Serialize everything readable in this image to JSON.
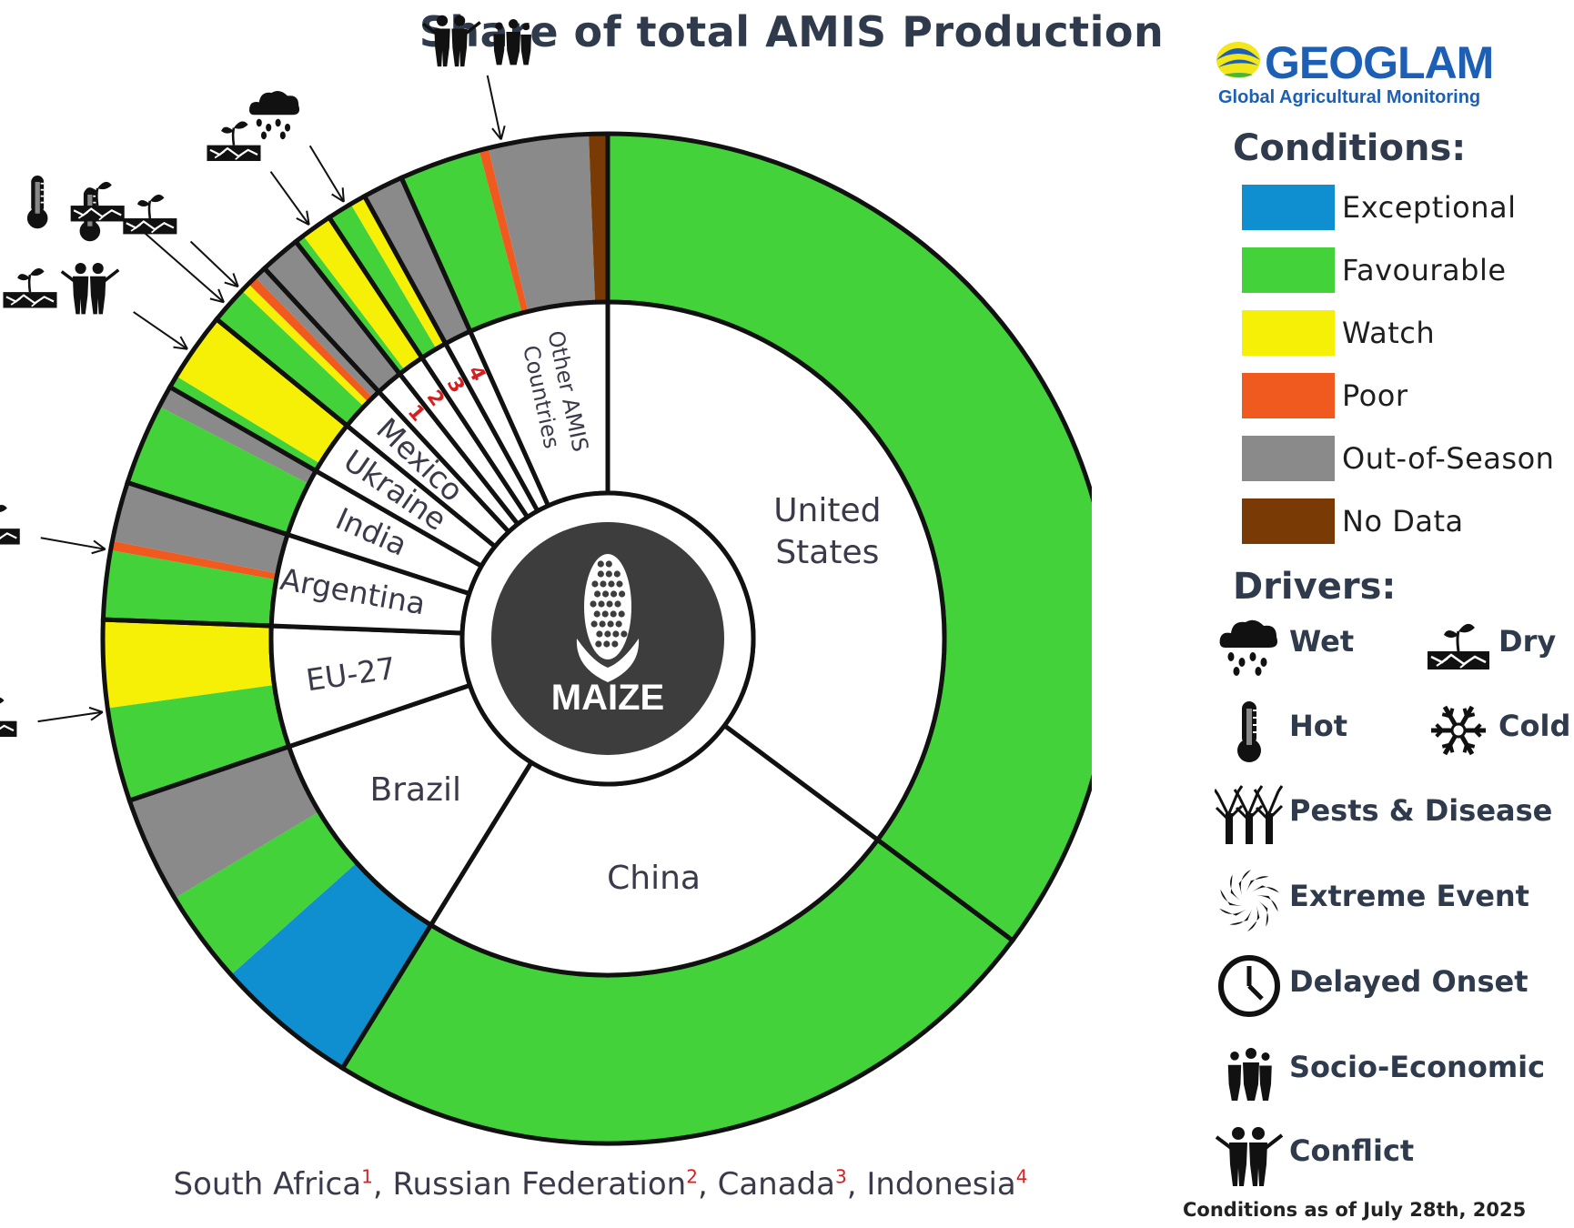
{
  "title": "Share of total AMIS Production",
  "center_label": "MAIZE",
  "footnote": {
    "items": [
      {
        "name": "South Africa",
        "num": "1"
      },
      {
        "name": "Russian Federation",
        "num": "2"
      },
      {
        "name": "Canada",
        "num": "3"
      },
      {
        "name": "Indonesia",
        "num": "4"
      }
    ]
  },
  "as_of": "Conditions as of July 28th, 2025",
  "logo": {
    "word": "GEOGLAM",
    "sub": "Global Agricultural Monitoring"
  },
  "legend": {
    "conditions_heading": "Conditions:",
    "conditions": [
      {
        "label": "Exceptional",
        "color": "#0f8fd0"
      },
      {
        "label": "Favourable",
        "color": "#44d23a"
      },
      {
        "label": "Watch",
        "color": "#f5f006"
      },
      {
        "label": "Poor",
        "color": "#f05a1e"
      },
      {
        "label": "Out-of-Season",
        "color": "#8a8a8a"
      },
      {
        "label": "No Data",
        "color": "#7a3a06"
      }
    ],
    "drivers_heading": "Drivers:",
    "drivers": [
      {
        "label": "Wet",
        "icon": "wet-icon"
      },
      {
        "label": "Dry",
        "icon": "dry-icon"
      },
      {
        "label": "Hot",
        "icon": "hot-icon"
      },
      {
        "label": "Cold",
        "icon": "cold-icon"
      },
      {
        "label": "Pests & Disease",
        "icon": "pests-disease-icon"
      },
      {
        "label": "Extreme Event",
        "icon": "extreme-event-icon"
      },
      {
        "label": "Delayed Onset",
        "icon": "delayed-onset-icon"
      },
      {
        "label": "Socio-Economic",
        "icon": "socio-economic-icon"
      },
      {
        "label": "Conflict",
        "icon": "conflict-icon"
      }
    ]
  },
  "chart_data": {
    "type": "pie",
    "subtype": "nested-donut",
    "title": "Share of total AMIS Production",
    "inner_ring": {
      "description": "countries by share of total AMIS maize production (%)",
      "slices": [
        {
          "label": "United States",
          "value": 35.2
        },
        {
          "label": "China",
          "value": 23.6
        },
        {
          "label": "Brazil",
          "value": 11.0
        },
        {
          "label": "EU-27",
          "value": 5.8
        },
        {
          "label": "Argentina",
          "value": 4.4
        },
        {
          "label": "India",
          "value": 3.3
        },
        {
          "label": "Ukraine",
          "value": 2.6
        },
        {
          "label": "Mexico",
          "value": 2.2
        },
        {
          "label": "1",
          "value": 1.3
        },
        {
          "label": "2",
          "value": 1.3
        },
        {
          "label": "3",
          "value": 1.3
        },
        {
          "label": "4",
          "value": 1.3
        },
        {
          "label": "Other AMIS Countries",
          "value": 6.7
        }
      ]
    },
    "outer_ring": {
      "description": "condition share within each country (% of total)",
      "segments": [
        {
          "country": "United States",
          "condition": "Favourable",
          "value": 35.2
        },
        {
          "country": "China",
          "condition": "Favourable",
          "value": 23.6
        },
        {
          "country": "Brazil",
          "condition": "Exceptional",
          "value": 4.6
        },
        {
          "country": "Brazil",
          "condition": "Favourable",
          "value": 3.0
        },
        {
          "country": "Brazil",
          "condition": "Out-of-Season",
          "value": 3.4
        },
        {
          "country": "EU-27",
          "condition": "Favourable",
          "value": 3.0
        },
        {
          "country": "EU-27",
          "condition": "Watch",
          "value": 2.8
        },
        {
          "country": "Argentina",
          "condition": "Favourable",
          "value": 2.2
        },
        {
          "country": "Argentina",
          "condition": "Poor",
          "value": 0.3
        },
        {
          "country": "Argentina",
          "condition": "Out-of-Season",
          "value": 1.9
        },
        {
          "country": "India",
          "condition": "Favourable",
          "value": 2.6
        },
        {
          "country": "India",
          "condition": "Out-of-Season",
          "value": 0.7
        },
        {
          "country": "Ukraine",
          "condition": "Favourable",
          "value": 0.4
        },
        {
          "country": "Ukraine",
          "condition": "Watch",
          "value": 2.2
        },
        {
          "country": "Mexico",
          "condition": "Favourable",
          "value": 1.2
        },
        {
          "country": "Mexico",
          "condition": "Watch",
          "value": 0.3
        },
        {
          "country": "Mexico",
          "condition": "Poor",
          "value": 0.3
        },
        {
          "country": "Mexico",
          "condition": "Out-of-Season",
          "value": 0.4
        },
        {
          "country": "South Africa",
          "condition": "Out-of-Season",
          "value": 1.3
        },
        {
          "country": "Russian Federation",
          "condition": "Favourable",
          "value": 0.3
        },
        {
          "country": "Russian Federation",
          "condition": "Watch",
          "value": 1.0
        },
        {
          "country": "Canada",
          "condition": "Favourable",
          "value": 0.8
        },
        {
          "country": "Canada",
          "condition": "Watch",
          "value": 0.5
        },
        {
          "country": "Indonesia",
          "condition": "Out-of-Season",
          "value": 1.3
        },
        {
          "country": "Other AMIS Countries",
          "condition": "Favourable",
          "value": 2.6
        },
        {
          "country": "Other AMIS Countries",
          "condition": "Poor",
          "value": 0.3
        },
        {
          "country": "Other AMIS Countries",
          "condition": "Out-of-Season",
          "value": 3.2
        },
        {
          "country": "Other AMIS Countries",
          "condition": "No Data",
          "value": 0.6
        }
      ]
    },
    "driver_annotations": [
      {
        "country": "EU-27",
        "drivers": [
          "Dry"
        ]
      },
      {
        "country": "Argentina",
        "drivers": [
          "Hot",
          "Dry"
        ]
      },
      {
        "country": "Ukraine",
        "drivers": [
          "Hot",
          "Dry",
          "Conflict"
        ]
      },
      {
        "country": "Mexico",
        "drivers": [
          "Hot",
          "Dry"
        ]
      },
      {
        "country": "Mexico",
        "drivers": [
          "Hot",
          "Dry"
        ]
      },
      {
        "country": "Russian Federation",
        "drivers": [
          "Dry"
        ]
      },
      {
        "country": "Canada",
        "drivers": [
          "Wet"
        ]
      },
      {
        "country": "Other AMIS Countries",
        "drivers": [
          "Conflict",
          "Socio-Economic"
        ]
      }
    ],
    "legend_position": "right"
  }
}
